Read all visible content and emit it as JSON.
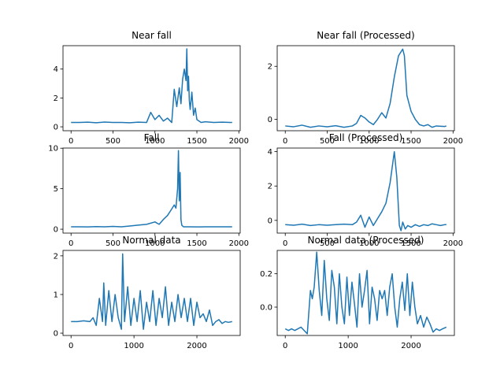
{
  "colors": {
    "series": "#1f77b4"
  },
  "chart_data": [
    {
      "type": "line",
      "title": "Near fall",
      "xlim": [
        -96,
        2016
      ],
      "ylim": [
        -0.27,
        5.62
      ],
      "xticks": [
        0,
        500,
        1000,
        1500,
        2000
      ],
      "yticks": [
        0,
        2,
        4
      ],
      "x": [
        0,
        100,
        200,
        300,
        400,
        500,
        600,
        700,
        800,
        900,
        950,
        1000,
        1050,
        1100,
        1150,
        1200,
        1230,
        1260,
        1290,
        1310,
        1330,
        1350,
        1370,
        1380,
        1390,
        1400,
        1410,
        1420,
        1440,
        1460,
        1480,
        1500,
        1550,
        1600,
        1700,
        1800,
        1900,
        1920
      ],
      "values": [
        0.3,
        0.3,
        0.32,
        0.28,
        0.33,
        0.3,
        0.3,
        0.28,
        0.32,
        0.3,
        1.0,
        0.5,
        0.8,
        0.4,
        0.6,
        0.3,
        2.6,
        1.4,
        2.7,
        1.6,
        3.3,
        4.0,
        3.2,
        5.4,
        2.5,
        3.5,
        1.8,
        1.2,
        2.4,
        0.8,
        1.3,
        0.5,
        0.3,
        0.35,
        0.3,
        0.32,
        0.3,
        0.3
      ]
    },
    {
      "type": "line",
      "title": "Near fall (Processed)",
      "xlim": [
        -96,
        2016
      ],
      "ylim": [
        -0.43,
        2.78
      ],
      "xticks": [
        0,
        500,
        1000,
        1500,
        2000
      ],
      "yticks": [
        0,
        2
      ],
      "x": [
        0,
        100,
        200,
        300,
        400,
        500,
        600,
        700,
        800,
        850,
        900,
        950,
        1000,
        1050,
        1100,
        1150,
        1200,
        1250,
        1300,
        1350,
        1400,
        1420,
        1450,
        1500,
        1550,
        1600,
        1650,
        1700,
        1750,
        1800,
        1900,
        1920
      ],
      "values": [
        -0.25,
        -0.28,
        -0.22,
        -0.3,
        -0.25,
        -0.28,
        -0.24,
        -0.3,
        -0.25,
        -0.15,
        0.15,
        0.05,
        -0.1,
        -0.2,
        0.0,
        0.25,
        0.05,
        0.6,
        1.6,
        2.4,
        2.65,
        2.4,
        0.9,
        0.3,
        0.0,
        -0.2,
        -0.25,
        -0.2,
        -0.3,
        -0.25,
        -0.27,
        -0.25
      ]
    },
    {
      "type": "line",
      "title": "Fall",
      "xlim": [
        -96,
        2016
      ],
      "ylim": [
        -0.48,
        10.02
      ],
      "xticks": [
        0,
        500,
        1000,
        1500,
        2000
      ],
      "yticks": [
        0,
        5,
        10
      ],
      "x": [
        0,
        100,
        200,
        300,
        400,
        500,
        600,
        700,
        800,
        900,
        1000,
        1050,
        1100,
        1150,
        1200,
        1230,
        1250,
        1270,
        1280,
        1290,
        1300,
        1310,
        1320,
        1340,
        1400,
        1500,
        1600,
        1700,
        1800,
        1900,
        1920
      ],
      "values": [
        0.3,
        0.3,
        0.28,
        0.32,
        0.3,
        0.35,
        0.3,
        0.4,
        0.5,
        0.6,
        0.9,
        0.6,
        1.2,
        1.7,
        2.5,
        3.0,
        2.6,
        5.0,
        9.7,
        3.5,
        7.0,
        1.2,
        0.5,
        0.3,
        0.3,
        0.28,
        0.3,
        0.3,
        0.3,
        0.3,
        0.3
      ]
    },
    {
      "type": "line",
      "title": "Fall (Processed)",
      "xlim": [
        -96,
        2016
      ],
      "ylim": [
        -0.74,
        4.21
      ],
      "xticks": [
        0,
        500,
        1000,
        1500,
        2000
      ],
      "yticks": [
        0,
        2,
        4
      ],
      "x": [
        0,
        100,
        200,
        300,
        400,
        500,
        600,
        700,
        800,
        850,
        900,
        950,
        1000,
        1050,
        1100,
        1150,
        1200,
        1250,
        1300,
        1330,
        1360,
        1380,
        1400,
        1430,
        1460,
        1500,
        1550,
        1600,
        1650,
        1700,
        1750,
        1800,
        1850,
        1900,
        1920
      ],
      "values": [
        -0.25,
        -0.28,
        -0.22,
        -0.3,
        -0.25,
        -0.28,
        -0.25,
        -0.22,
        -0.25,
        -0.1,
        0.3,
        -0.4,
        0.2,
        -0.3,
        0.1,
        0.5,
        1.0,
        2.2,
        4.0,
        2.5,
        -0.3,
        -0.6,
        -0.1,
        -0.5,
        -0.3,
        -0.4,
        -0.25,
        -0.35,
        -0.25,
        -0.3,
        -0.2,
        -0.25,
        -0.3,
        -0.25,
        -0.25
      ]
    },
    {
      "type": "line",
      "title": "Normal data",
      "xlim": [
        -128,
        2688
      ],
      "ylim": [
        -0.06,
        2.14
      ],
      "xticks": [
        0,
        1000,
        2000
      ],
      "yticks": [
        0,
        1,
        2
      ],
      "x": [
        0,
        100,
        200,
        300,
        350,
        400,
        450,
        500,
        520,
        550,
        600,
        650,
        700,
        750,
        800,
        820,
        850,
        900,
        950,
        1000,
        1050,
        1100,
        1150,
        1200,
        1250,
        1300,
        1350,
        1400,
        1450,
        1500,
        1550,
        1600,
        1650,
        1700,
        1750,
        1800,
        1850,
        1900,
        1950,
        2000,
        2050,
        2100,
        2150,
        2200,
        2250,
        2300,
        2350,
        2400,
        2450,
        2500,
        2560
      ],
      "values": [
        0.3,
        0.3,
        0.32,
        0.3,
        0.4,
        0.2,
        0.9,
        0.3,
        1.3,
        0.2,
        1.1,
        0.3,
        1.0,
        0.4,
        0.1,
        2.05,
        0.3,
        1.2,
        0.2,
        0.9,
        0.3,
        1.1,
        0.1,
        0.8,
        0.3,
        1.1,
        0.2,
        0.9,
        0.4,
        1.2,
        0.2,
        0.8,
        0.3,
        1.0,
        0.4,
        0.9,
        0.3,
        0.9,
        0.2,
        0.8,
        0.4,
        0.5,
        0.3,
        0.6,
        0.2,
        0.3,
        0.35,
        0.25,
        0.3,
        0.28,
        0.3
      ]
    },
    {
      "type": "line",
      "title": "Normal data (Processed)",
      "xlim": [
        -128,
        2688
      ],
      "ylim": [
        -0.17,
        0.34
      ],
      "xticks": [
        0,
        1000,
        2000
      ],
      "yticks": [
        0.0,
        0.2
      ],
      "yticklabels": [
        "0.0",
        "0.2"
      ],
      "x": [
        0,
        50,
        100,
        150,
        200,
        250,
        300,
        350,
        400,
        430,
        460,
        500,
        540,
        580,
        620,
        660,
        700,
        740,
        780,
        820,
        860,
        900,
        940,
        980,
        1020,
        1060,
        1100,
        1140,
        1180,
        1220,
        1260,
        1300,
        1340,
        1380,
        1420,
        1460,
        1500,
        1540,
        1580,
        1620,
        1660,
        1700,
        1740,
        1780,
        1820,
        1860,
        1900,
        1940,
        1980,
        2020,
        2060,
        2100,
        2150,
        2200,
        2250,
        2300,
        2350,
        2400,
        2450,
        2500,
        2560
      ],
      "values": [
        -0.13,
        -0.14,
        -0.13,
        -0.14,
        -0.13,
        -0.12,
        -0.14,
        -0.16,
        0.1,
        0.05,
        0.12,
        0.33,
        0.1,
        -0.05,
        0.28,
        0.05,
        -0.08,
        0.22,
        0.12,
        -0.1,
        0.2,
        0.0,
        -0.1,
        0.18,
        -0.05,
        0.15,
        0.02,
        -0.12,
        0.2,
        0.0,
        0.1,
        0.22,
        -0.1,
        0.12,
        0.05,
        -0.08,
        0.1,
        0.05,
        0.1,
        -0.05,
        0.12,
        0.2,
        0.0,
        -0.12,
        0.05,
        0.15,
        -0.02,
        0.2,
        -0.05,
        0.15,
        0.0,
        -0.1,
        -0.05,
        -0.12,
        -0.06,
        -0.1,
        -0.15,
        -0.13,
        -0.14,
        -0.13,
        -0.12
      ]
    }
  ]
}
